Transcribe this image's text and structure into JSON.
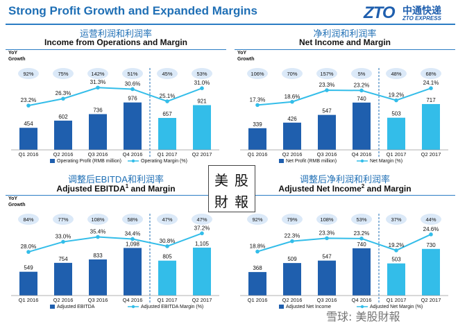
{
  "header": {
    "title": "Strong Profit Growth and Expanded Margins",
    "logo_mark": "ZTO",
    "logo_cn": "中通快递",
    "logo_en": "ZTO EXPRESS"
  },
  "yoy_label_line1": "YoY",
  "yoy_label_line2": "Growth",
  "colors": {
    "bar_dark": "#1f5fae",
    "bar_light": "#33bde9",
    "line": "#33bde9",
    "bubble": "#dbe9f8",
    "accent": "#1f6fb5"
  },
  "stamp": {
    "chars": [
      "美",
      "股",
      "財",
      "報"
    ]
  },
  "watermark": "雪球: 美股財報",
  "chart_data": [
    {
      "type": "bar",
      "title_cn": "运营利润和利润率",
      "title": "Income from Operations and Margin",
      "categories": [
        "Q1 2016",
        "Q2 2016",
        "Q3 2016",
        "Q4 2016",
        "Q1 2017",
        "Q2 2017"
      ],
      "bar_labels": [
        "454",
        "602",
        "736",
        "976",
        "657",
        "921"
      ],
      "margin_labels": [
        "23.2%",
        "26.3%",
        "31.3%",
        "30.6%",
        "25.1%",
        "31.0%"
      ],
      "growth": [
        "92%",
        "75%",
        "142%",
        "51%",
        "45%",
        "53%"
      ],
      "series": [
        {
          "name": "Operating Profit (RMB million)",
          "values": [
            454,
            602,
            736,
            976,
            657,
            921
          ]
        },
        {
          "name": "Operating Margin (%)",
          "values": [
            23.2,
            26.3,
            31.3,
            30.6,
            25.1,
            31.0
          ]
        }
      ],
      "ylim": [
        0,
        1000
      ],
      "margin_range": [
        22,
        32
      ]
    },
    {
      "type": "bar",
      "title_cn": "净利润和利润率",
      "title": "Net Income and Margin",
      "categories": [
        "Q1 2016",
        "Q2 2016",
        "Q3 2016",
        "Q4 2016",
        "Q1 2017",
        "Q2 2017"
      ],
      "bar_labels": [
        "339",
        "426",
        "547",
        "740",
        "503",
        "717"
      ],
      "margin_labels": [
        "17.3%",
        "18.6%",
        "23.3%",
        "23.2%",
        "19.2%",
        "24.1%"
      ],
      "growth": [
        "106%",
        "70%",
        "157%",
        "5%",
        "48%",
        "68%"
      ],
      "series": [
        {
          "name": "Net Profit (RMB million)",
          "values": [
            339,
            426,
            547,
            740,
            503,
            717
          ]
        },
        {
          "name": "Net Margin (%)",
          "values": [
            17.3,
            18.6,
            23.3,
            23.2,
            19.2,
            24.1
          ]
        }
      ],
      "ylim": [
        0,
        760
      ],
      "margin_range": [
        16,
        25
      ]
    },
    {
      "type": "bar",
      "title_cn": "调整后EBITDA和利润率",
      "title": "Adjusted EBITDA",
      "title_sup": "1",
      "title_suffix": " and Margin",
      "categories": [
        "Q1 2016",
        "Q2 2016",
        "Q3 2016",
        "Q4 2016",
        "Q1 2017",
        "Q2 2017"
      ],
      "bar_labels": [
        "549",
        "754",
        "833",
        "1,098",
        "805",
        "1,105"
      ],
      "margin_labels": [
        "28.0%",
        "33.0%",
        "35.4%",
        "34.4%",
        "30.8%",
        "37.2%"
      ],
      "growth": [
        "84%",
        "77%",
        "108%",
        "58%",
        "47%",
        "47%"
      ],
      "series": [
        {
          "name": "Adjusted EBITDA",
          "values": [
            549,
            754,
            833,
            1098,
            805,
            1105
          ]
        },
        {
          "name": "Adjusted EBITDA Margin (%)",
          "values": [
            28.0,
            33.0,
            35.4,
            34.4,
            30.8,
            37.2
          ]
        }
      ],
      "ylim": [
        0,
        1120
      ],
      "margin_range": [
        27,
        38
      ]
    },
    {
      "type": "bar",
      "title_cn": "调整后净利润和利润率",
      "title": "Adjusted Net Income",
      "title_sup": "2",
      "title_suffix": " and Margin",
      "categories": [
        "Q1 2016",
        "Q2 2016",
        "Q3 2016",
        "Q4 2016",
        "Q1 2017",
        "Q2 2017"
      ],
      "bar_labels": [
        "368",
        "509",
        "547",
        "740",
        "503",
        "730"
      ],
      "margin_labels": [
        "18.8%",
        "22.3%",
        "23.3%",
        "23.2%",
        "19.2%",
        "24.6%"
      ],
      "growth": [
        "92%",
        "79%",
        "108%",
        "53%",
        "37%",
        "44%"
      ],
      "series": [
        {
          "name": "Adjusted Net Income",
          "values": [
            368,
            509,
            547,
            740,
            503,
            730
          ]
        },
        {
          "name": "Adjusted Net Margin (%)",
          "values": [
            18.8,
            22.3,
            23.3,
            23.2,
            19.2,
            24.6
          ]
        }
      ],
      "ylim": [
        0,
        760
      ],
      "margin_range": [
        18,
        25.5
      ]
    }
  ]
}
